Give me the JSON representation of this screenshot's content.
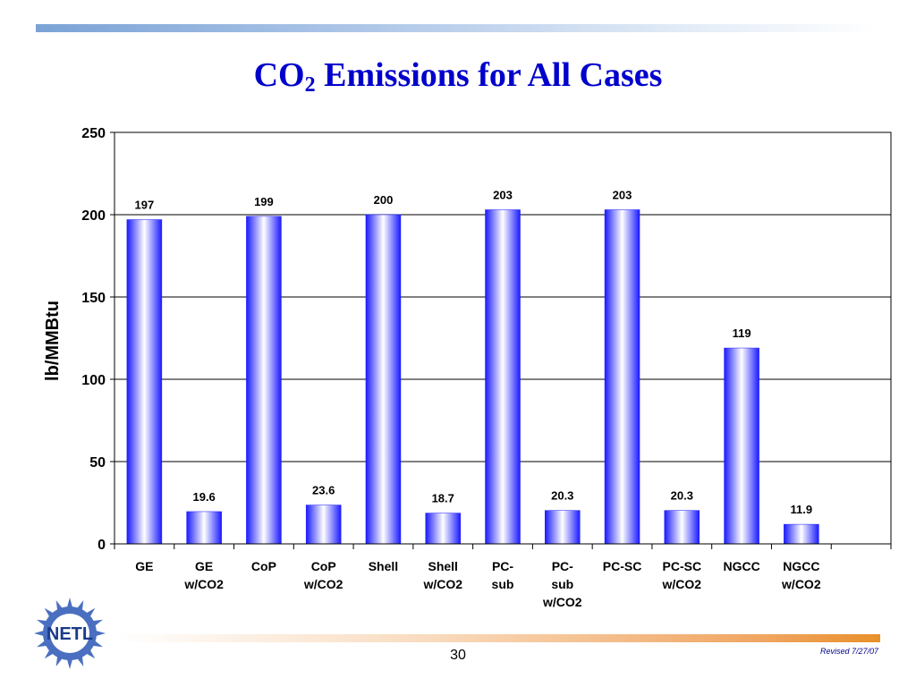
{
  "slide": {
    "title_main": "CO",
    "title_sub": "2",
    "title_rest": " Emissions for All Cases",
    "page_number": "30",
    "revised": "Revised 7/27/07",
    "logo_text": "NETL"
  },
  "colors": {
    "title": "#0000cc",
    "bar_edge": "#1a1aff",
    "bar_center": "#ffffff"
  },
  "chart_data": {
    "type": "bar",
    "title": "",
    "xlabel": "",
    "ylabel": "lb/MMBtu",
    "ylim": [
      0,
      250
    ],
    "yticks": [
      0,
      50,
      100,
      150,
      200,
      250
    ],
    "grid": true,
    "legend": "none",
    "categories": [
      [
        "GE"
      ],
      [
        "GE",
        "w/CO2"
      ],
      [
        "CoP"
      ],
      [
        "CoP",
        "w/CO2"
      ],
      [
        "Shell"
      ],
      [
        "Shell",
        "w/CO2"
      ],
      [
        "PC-",
        "sub"
      ],
      [
        "PC-",
        "sub",
        "w/CO2"
      ],
      [
        "PC-SC"
      ],
      [
        "PC-SC",
        "w/CO2"
      ],
      [
        "NGCC"
      ],
      [
        "NGCC",
        "w/CO2"
      ],
      []
    ],
    "values": [
      197,
      19.6,
      199,
      23.6,
      200,
      18.7,
      203,
      20.3,
      203,
      20.3,
      119,
      11.9,
      null
    ],
    "labels": [
      "197",
      "19.6",
      "199",
      "23.6",
      "200",
      "18.7",
      "203",
      "20.3",
      "203",
      "20.3",
      "119",
      "11.9",
      ""
    ]
  }
}
